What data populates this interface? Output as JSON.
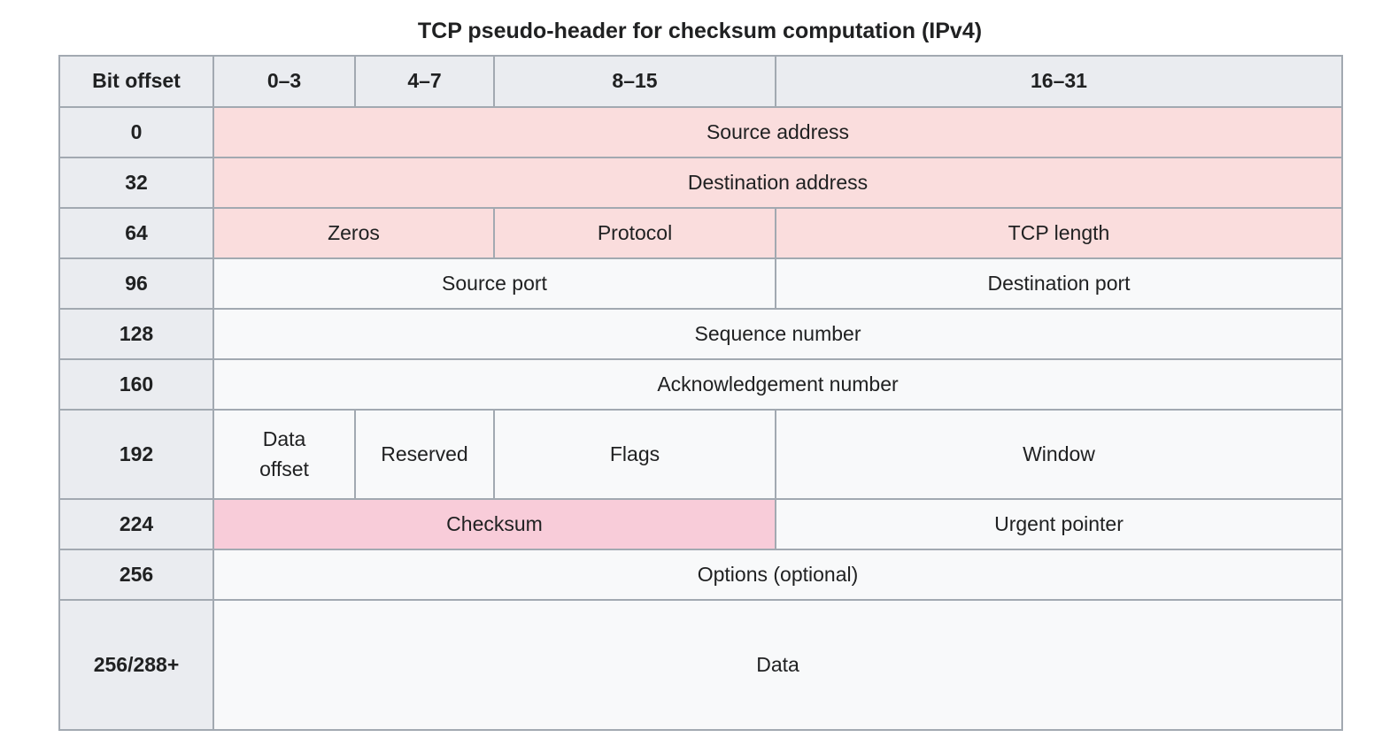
{
  "title": "TCP pseudo-header for checksum computation (IPv4)",
  "colors": {
    "header_bg": "#eaecf0",
    "cell_bg": "#f8f9fa",
    "pseudo_header_highlight": "#fadddd",
    "checksum_highlight": "#f8ccd9",
    "border": "#a2a9b1",
    "text": "#202122"
  },
  "table": {
    "caption": "TCP pseudo-header for checksum computation (IPv4)",
    "columns": [
      "Bit offset",
      "0–3",
      "4–7",
      "8–15",
      "16–31"
    ],
    "rows": [
      {
        "offset": "0",
        "cells": [
          {
            "label": "Source address",
            "span": 4,
            "highlight": "pseudo"
          }
        ]
      },
      {
        "offset": "32",
        "cells": [
          {
            "label": "Destination address",
            "span": 4,
            "highlight": "pseudo"
          }
        ]
      },
      {
        "offset": "64",
        "cells": [
          {
            "label": "Zeros",
            "span": 2,
            "highlight": "pseudo"
          },
          {
            "label": "Protocol",
            "span": 1,
            "highlight": "pseudo"
          },
          {
            "label": "TCP length",
            "span": 1,
            "highlight": "pseudo"
          }
        ]
      },
      {
        "offset": "96",
        "cells": [
          {
            "label": "Source port",
            "span": 3
          },
          {
            "label": "Destination port",
            "span": 1
          }
        ]
      },
      {
        "offset": "128",
        "cells": [
          {
            "label": "Sequence number",
            "span": 4
          }
        ]
      },
      {
        "offset": "160",
        "cells": [
          {
            "label": "Acknowledgement number",
            "span": 4
          }
        ]
      },
      {
        "offset": "192",
        "cells": [
          {
            "label": "Data offset",
            "span": 1,
            "lines": [
              "Data",
              "offset"
            ]
          },
          {
            "label": "Reserved",
            "span": 1
          },
          {
            "label": "Flags",
            "span": 1
          },
          {
            "label": "Window",
            "span": 1
          }
        ]
      },
      {
        "offset": "224",
        "cells": [
          {
            "label": "Checksum",
            "span": 3,
            "highlight": "checksum"
          },
          {
            "label": "Urgent pointer",
            "span": 1
          }
        ]
      },
      {
        "offset": "256",
        "cells": [
          {
            "label": "Options (optional)",
            "span": 4
          }
        ]
      },
      {
        "offset": "256/288+",
        "cells": [
          {
            "label": "Data",
            "span": 4
          }
        ]
      }
    ]
  }
}
